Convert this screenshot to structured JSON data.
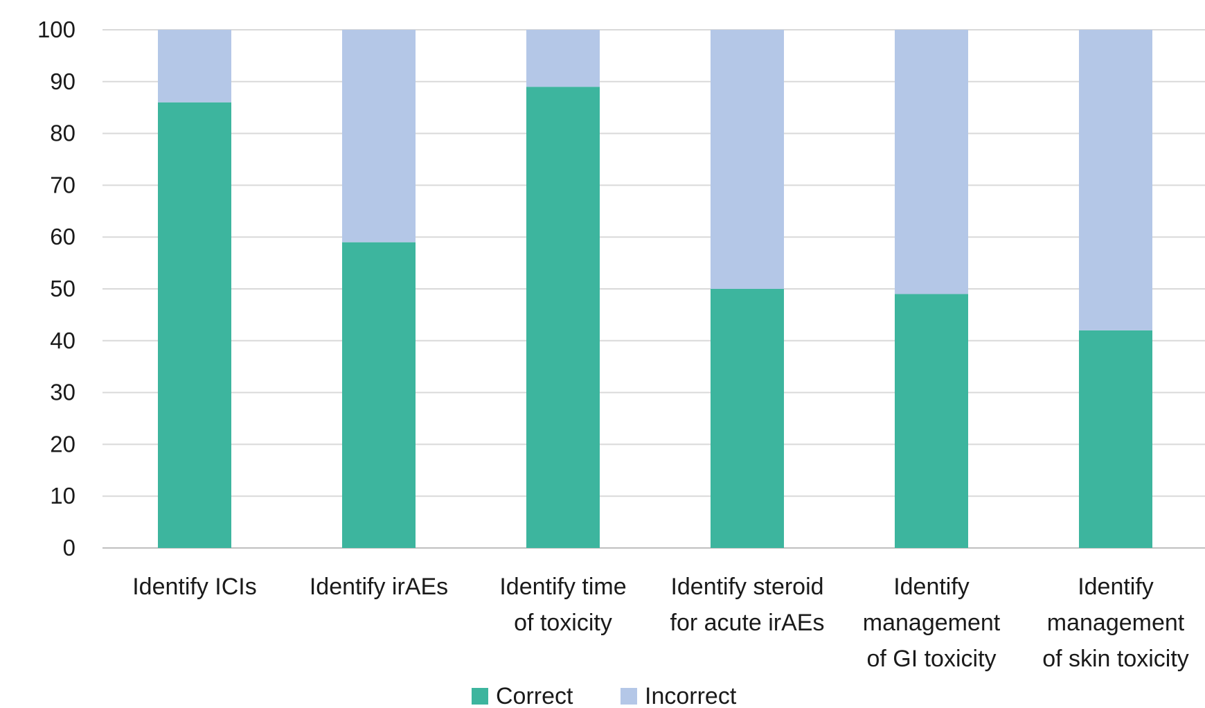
{
  "chart_data": {
    "type": "bar",
    "stacked": true,
    "title": "",
    "xlabel": "",
    "ylabel": "",
    "ylim": [
      0,
      100
    ],
    "yticks": [
      0,
      10,
      20,
      30,
      40,
      50,
      60,
      70,
      80,
      90,
      100
    ],
    "grid": true,
    "legend_position": "bottom",
    "categories": [
      [
        "Identify ICIs"
      ],
      [
        "Identify irAEs"
      ],
      [
        "Identify time",
        "of toxicity"
      ],
      [
        "Identify steroid",
        "for acute irAEs"
      ],
      [
        "Identify",
        "management",
        "of GI toxicity"
      ],
      [
        "Identify",
        "management",
        "of skin toxicity"
      ]
    ],
    "series": [
      {
        "name": "Correct",
        "color": "#3db59e",
        "values": [
          86,
          59,
          89,
          50,
          49,
          42
        ]
      },
      {
        "name": "Incorrect",
        "color": "#b4c7e7",
        "values": [
          14,
          41,
          11,
          50,
          51,
          58
        ]
      }
    ]
  }
}
